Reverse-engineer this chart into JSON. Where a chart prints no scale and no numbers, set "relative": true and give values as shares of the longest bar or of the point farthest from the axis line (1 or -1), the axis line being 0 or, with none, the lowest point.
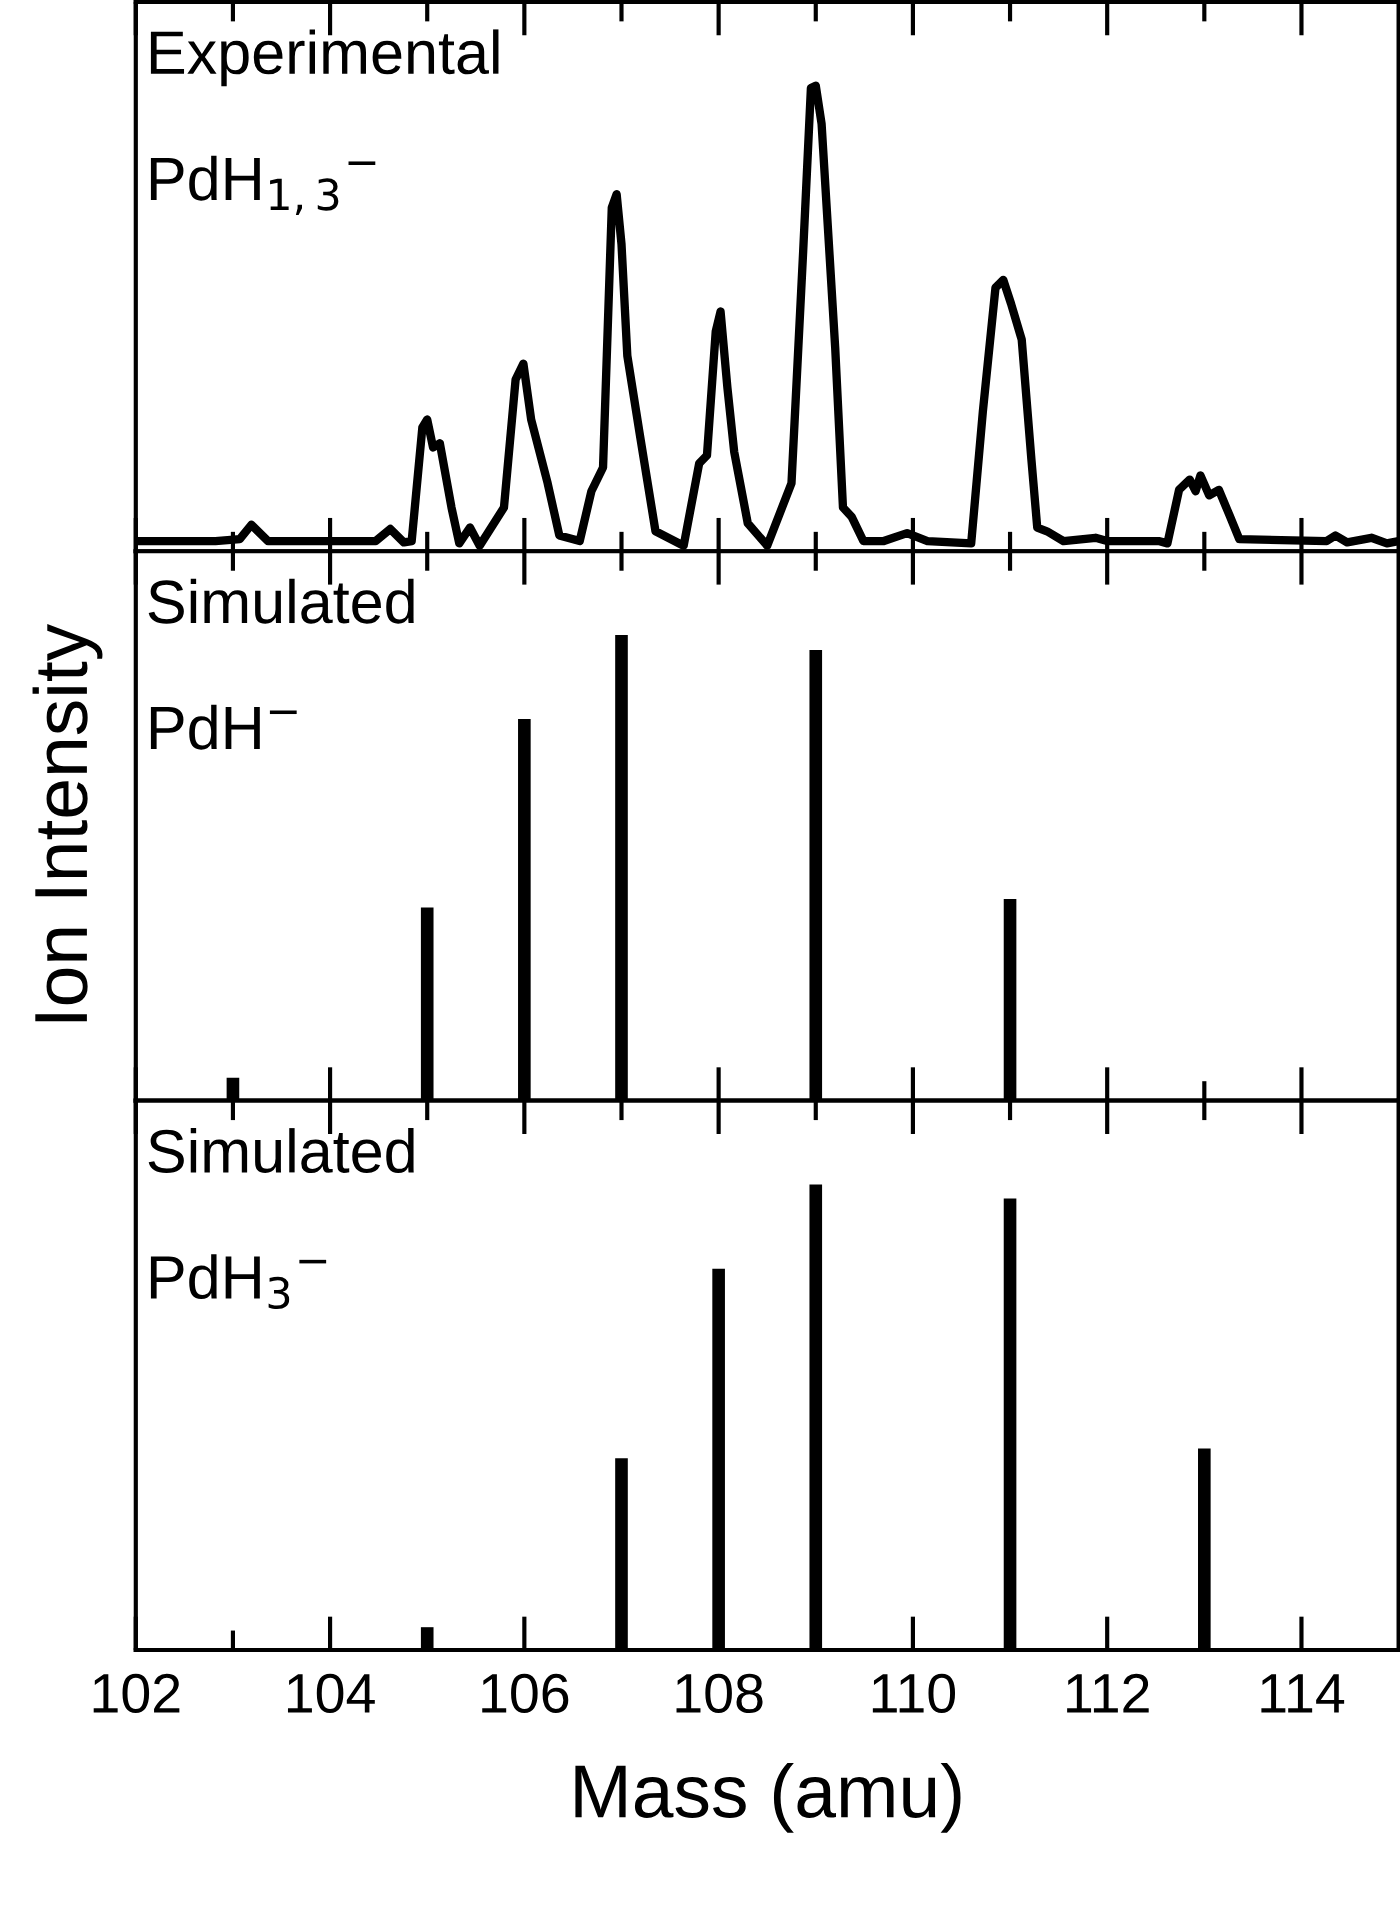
{
  "chart_data": [
    {
      "type": "line",
      "title": "Experimental",
      "subtitle": "PdH$_{1,3}$$^{−}$",
      "relative": true,
      "tick_labels": false,
      "xlim": [
        102,
        115
      ],
      "xticks": [
        102,
        {
          "value": 103,
          "label": null
        },
        104,
        {
          "value": 105,
          "label": null
        },
        106,
        {
          "value": 107,
          "label": null
        },
        108,
        {
          "value": 109,
          "label": null
        },
        110,
        {
          "value": 111,
          "label": null
        },
        112,
        {
          "value": 113,
          "label": null
        },
        114
      ],
      "series": [
        {
          "color": "#000000",
          "x": [
            102,
            102.82,
            103.07,
            103.19,
            103.36,
            104.47,
            104.62,
            104.76,
            104.84,
            104.95,
            105.0,
            105.06,
            105.13,
            105.25,
            105.33,
            105.44,
            105.54,
            105.79,
            105.91,
            105.99,
            106.07,
            106.24,
            106.36,
            106.57,
            106.69,
            106.81,
            106.9,
            106.95,
            107.0,
            107.06,
            107.19,
            107.35,
            107.64,
            107.8,
            107.88,
            107.97,
            108.02,
            108.09,
            108.16,
            108.3,
            108.5,
            108.75,
            108.87,
            108.95,
            109.0,
            109.06,
            109.2,
            109.28,
            109.37,
            109.49,
            109.7,
            109.94,
            110.15,
            110.6,
            110.72,
            110.85,
            110.93,
            111.01,
            111.12,
            111.22,
            111.28,
            111.38,
            111.55,
            111.88,
            112.0,
            112.53,
            112.62,
            112.74,
            112.85,
            112.91,
            112.96,
            113.05,
            113.15,
            113.26,
            113.36,
            114.26,
            114.35,
            114.47,
            114.72,
            114.88,
            115.0
          ],
          "values": [
            0.022,
            0.022,
            0.026,
            0.057,
            0.022,
            0.022,
            0.048,
            0.019,
            0.022,
            0.266,
            0.283,
            0.223,
            0.232,
            0.094,
            0.017,
            0.051,
            0.012,
            0.094,
            0.369,
            0.403,
            0.283,
            0.146,
            0.034,
            0.022,
            0.129,
            0.18,
            0.738,
            0.767,
            0.66,
            0.42,
            0.249,
            0.043,
            0.012,
            0.189,
            0.206,
            0.472,
            0.515,
            0.352,
            0.214,
            0.06,
            0.012,
            0.146,
            0.643,
            0.995,
            1.0,
            0.918,
            0.437,
            0.094,
            0.074,
            0.022,
            0.022,
            0.039,
            0.022,
            0.017,
            0.3,
            0.566,
            0.583,
            0.532,
            0.455,
            0.197,
            0.051,
            0.043,
            0.022,
            0.029,
            0.022,
            0.022,
            0.017,
            0.132,
            0.154,
            0.129,
            0.163,
            0.12,
            0.132,
            0.077,
            0.026,
            0.022,
            0.034,
            0.019,
            0.029,
            0.017,
            0.022
          ]
        }
      ]
    },
    {
      "type": "bar",
      "title": "Simulated",
      "subtitle": "PdH$^{−}$",
      "ylabel": "Ion Intensity",
      "relative": true,
      "tick_labels": false,
      "xlim": [
        102,
        115
      ],
      "xticks": [
        102,
        {
          "value": 103,
          "label": null
        },
        104,
        {
          "value": 105,
          "label": null
        },
        106,
        {
          "value": 107,
          "label": null
        },
        108,
        {
          "value": 109,
          "label": null
        },
        110,
        {
          "value": 111,
          "label": null
        },
        112,
        {
          "value": 113,
          "label": null
        },
        114
      ],
      "series": [
        {
          "color": "#000000",
          "x": [
            103,
            105,
            106,
            107,
            109,
            111
          ],
          "values": [
            0.049,
            0.415,
            0.82,
            1.0,
            0.968,
            0.433
          ]
        }
      ]
    },
    {
      "type": "bar",
      "title": "Simulated",
      "subtitle": "PdH$_{3}$$^{−}$",
      "xlabel": "Mass (amu)",
      "relative": true,
      "tick_labels": "x",
      "xlim": [
        102,
        115
      ],
      "xticks": [
        102,
        {
          "value": 103,
          "label": null
        },
        104,
        {
          "value": 105,
          "label": null
        },
        106,
        {
          "value": 107,
          "label": null
        },
        108,
        {
          "value": 109,
          "label": null
        },
        110,
        {
          "value": 111,
          "label": null
        },
        112,
        {
          "value": 113,
          "label": null
        },
        114
      ],
      "series": [
        {
          "color": "#000000",
          "x": [
            105,
            107,
            108,
            109,
            111,
            113
          ],
          "values": [
            0.049,
            0.412,
            0.819,
            1.0,
            0.97,
            0.433
          ]
        }
      ]
    }
  ]
}
